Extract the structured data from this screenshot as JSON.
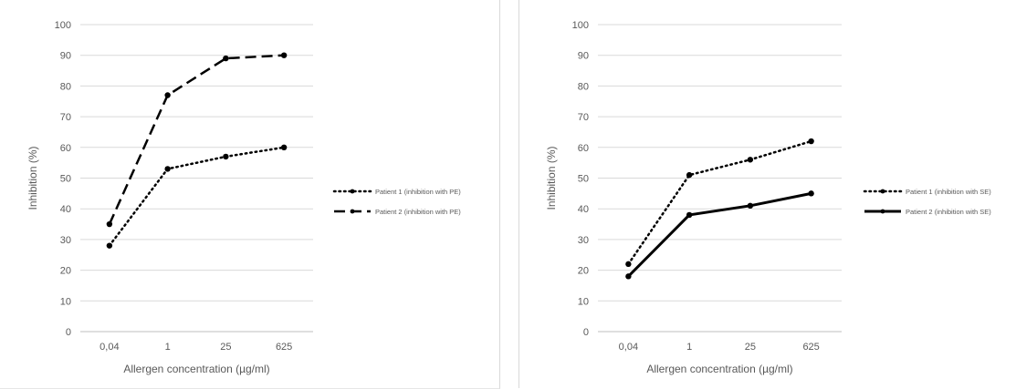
{
  "chart_data": [
    {
      "type": "line",
      "categories": [
        "0,04",
        "1",
        "25",
        "625"
      ],
      "xlabel": "Allergen concentration (µg/ml)",
      "ylabel": "Inhibition (%)",
      "ylim": [
        0,
        100
      ],
      "yticks": [
        "0",
        "10",
        "20",
        "30",
        "40",
        "50",
        "60",
        "70",
        "80",
        "90",
        "100"
      ],
      "grid": true,
      "legend_position": "right",
      "series": [
        {
          "name": "Patient 1 (inhibition with PE)",
          "values": [
            28,
            53,
            57,
            60
          ],
          "style": "dotted",
          "color": "#000000"
        },
        {
          "name": "Patient 2 (inhibition with PE)",
          "values": [
            35,
            77,
            89,
            90
          ],
          "style": "dashed",
          "color": "#000000"
        }
      ]
    },
    {
      "type": "line",
      "categories": [
        "0,04",
        "1",
        "25",
        "625"
      ],
      "xlabel": "Allergen concentration (µg/ml)",
      "ylabel": "Inhibition (%)",
      "ylim": [
        0,
        100
      ],
      "yticks": [
        "0",
        "10",
        "20",
        "30",
        "40",
        "50",
        "60",
        "70",
        "80",
        "90",
        "100"
      ],
      "grid": true,
      "legend_position": "right",
      "series": [
        {
          "name": "Patient 1 (inhibition with SE)",
          "values": [
            22,
            51,
            56,
            62
          ],
          "style": "dotted",
          "color": "#000000"
        },
        {
          "name": "Patient 2 (inhibition with SE)",
          "values": [
            18,
            38,
            41,
            45
          ],
          "style": "solid",
          "color": "#000000"
        }
      ]
    }
  ]
}
